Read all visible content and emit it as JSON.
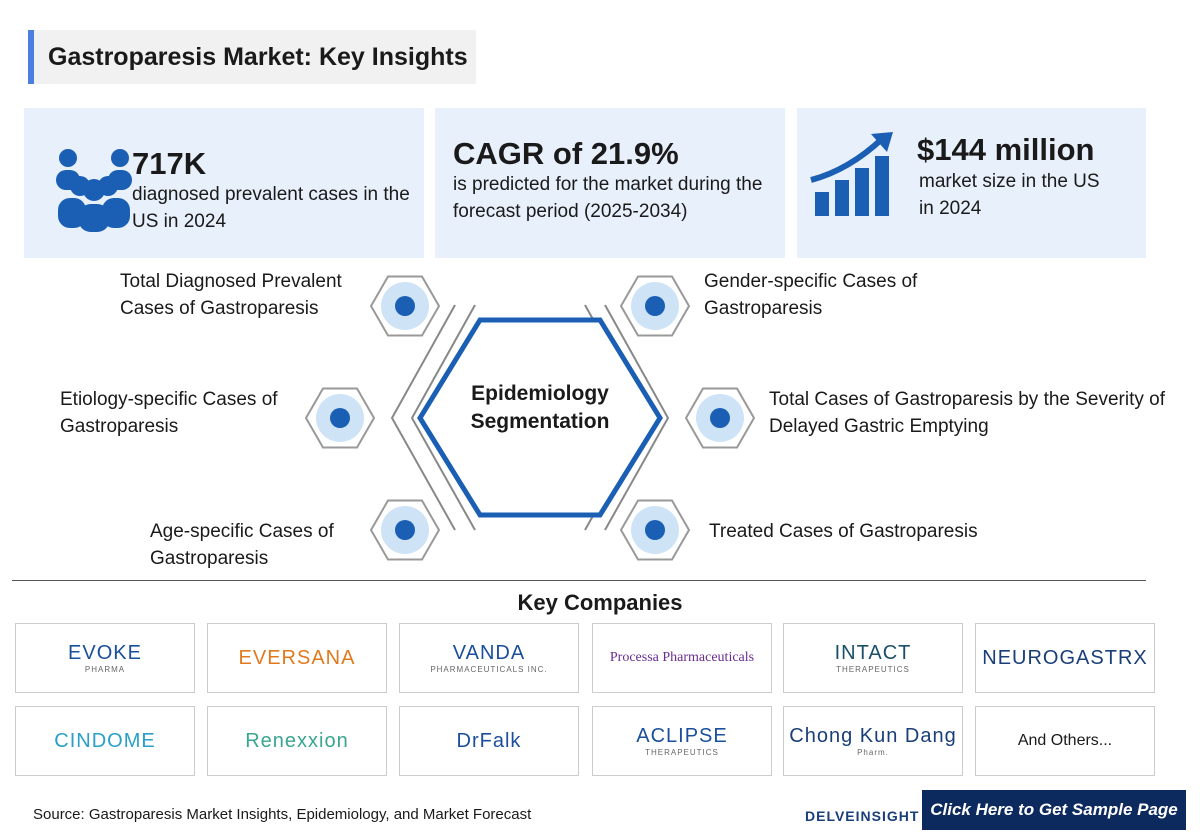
{
  "header": {
    "title": "Gastroparesis Market: Key Insights"
  },
  "stats": [
    {
      "value": "717K",
      "text": "diagnosed prevalent cases in the US in 2024"
    },
    {
      "value": "CAGR of 21.9%",
      "text": "is predicted for the market during the forecast period (2025-2034)"
    },
    {
      "value": "$144 million",
      "text": "market size in the US in 2024"
    }
  ],
  "segmentation": {
    "center": "Epidemiology Segmentation",
    "items": [
      "Total Diagnosed Prevalent Cases of Gastroparesis",
      "Etiology-specific Cases of Gastroparesis",
      "Age-specific Cases of Gastroparesis",
      "Gender-specific Cases of Gastroparesis",
      "Total Cases of Gastroparesis by the Severity of Delayed Gastric Emptying",
      "Treated Cases of Gastroparesis"
    ]
  },
  "companies": {
    "title": "Key Companies",
    "logos": [
      {
        "name": "EVOKE",
        "sub": "PHARMA"
      },
      {
        "name": "EVERSANA"
      },
      {
        "name": "VANDA",
        "sub": "PHARMACEUTICALS INC."
      },
      {
        "name": "Processa Pharmaceuticals"
      },
      {
        "name": "INTACT",
        "sub": "THERAPEUTICS"
      },
      {
        "name": "NEUROGASTRX"
      },
      {
        "name": "CINDOME"
      },
      {
        "name": "Renexxion"
      },
      {
        "name": "DrFalk"
      },
      {
        "name": "ACLIPSE",
        "sub": "THERAPEUTICS"
      },
      {
        "name": "Chong Kun Dang",
        "sub": "Pharm."
      },
      {
        "name": "And Others..."
      }
    ]
  },
  "footer": {
    "source": "Source: Gastroparesis Market Insights, Epidemiology, and Market Forecast",
    "brand": "DELVEINSIGHT",
    "button": "Click Here to Get Sample Page"
  }
}
